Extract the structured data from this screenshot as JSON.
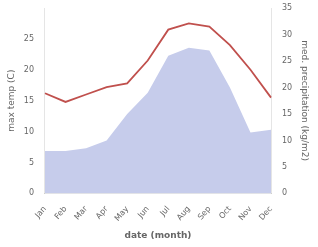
{
  "chart_data": {
    "type": "line",
    "categories": [
      "Jan",
      "Feb",
      "Mar",
      "Apr",
      "May",
      "Jun",
      "Jul",
      "Aug",
      "Sep",
      "Oct",
      "Nov",
      "Dec"
    ],
    "series": [
      {
        "type": "line",
        "color": "#c0504d",
        "values": [
          16.2,
          14.8,
          16.0,
          17.2,
          17.8,
          21.5,
          26.5,
          27.5,
          27.0,
          24.0,
          20.0,
          15.5
        ]
      },
      {
        "type": "area",
        "color": "#c6cceb",
        "axis": "y2",
        "values": [
          8.0,
          8.0,
          8.5,
          10.0,
          15.0,
          19.0,
          26.0,
          27.5,
          27.0,
          20.0,
          11.5,
          12.0
        ]
      }
    ],
    "xlabel": "date (month)",
    "ylabel": "max temp (C)",
    "y2label": "med. precipitation (kg/m2)",
    "ylim": [
      0,
      30
    ],
    "yticks": [
      0,
      5,
      10,
      15,
      20,
      25
    ],
    "y2lim": [
      0,
      35
    ],
    "y2ticks": [
      0,
      5,
      10,
      15,
      20,
      25,
      30,
      35
    ],
    "grid": false
  }
}
